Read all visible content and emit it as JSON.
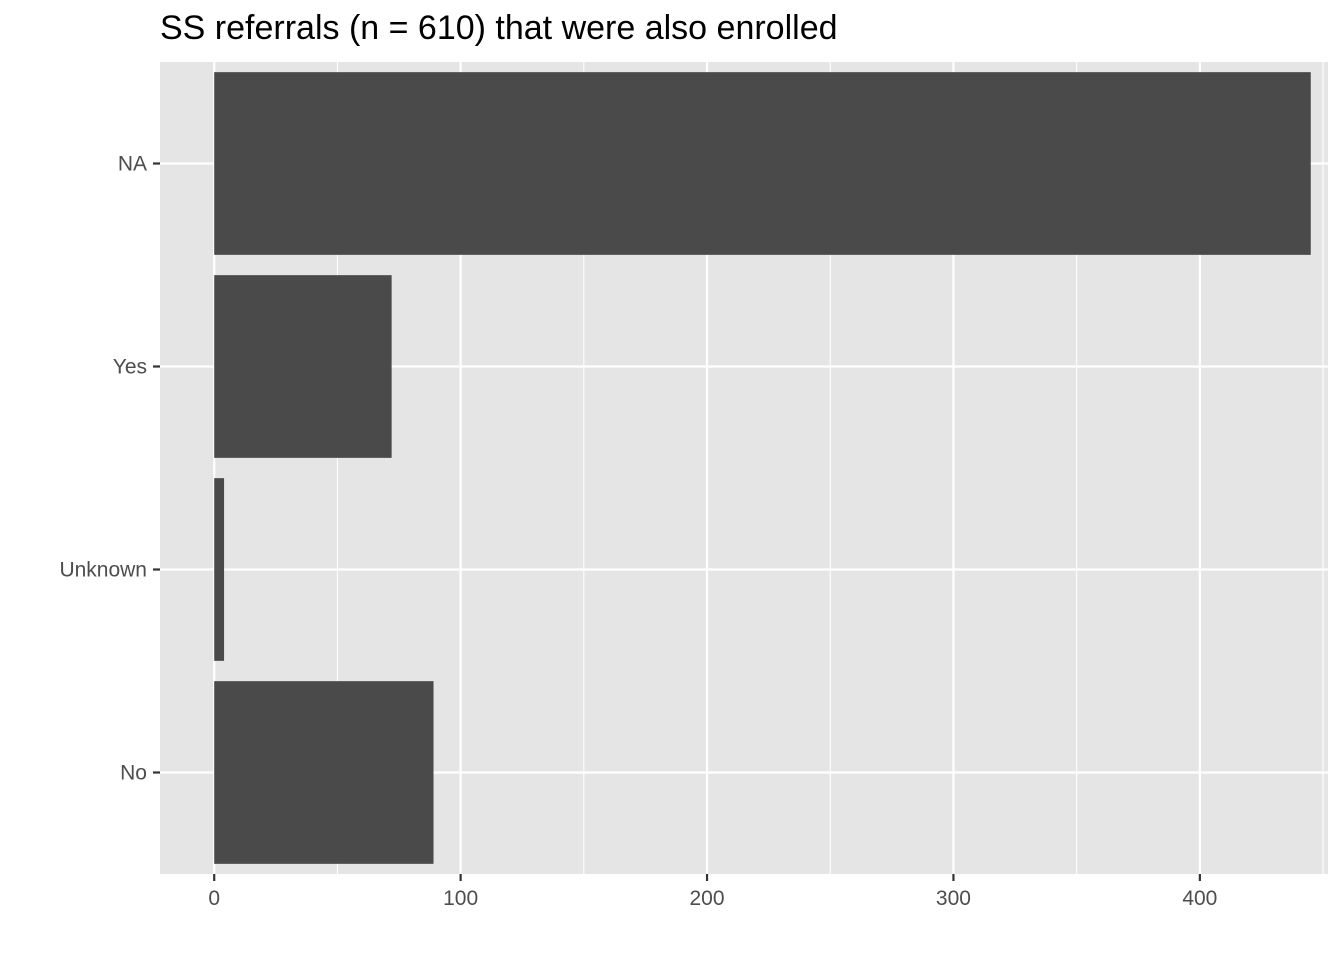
{
  "chart_data": {
    "type": "bar",
    "orientation": "horizontal",
    "title": "SS referrals (n = 610) that were also enrolled",
    "xlabel": "",
    "ylabel": "",
    "categories": [
      "NA",
      "Yes",
      "Unknown",
      "No"
    ],
    "values": [
      445,
      72,
      4,
      89
    ],
    "xlim": [
      -22,
      452
    ],
    "xticks": [
      0,
      100,
      200,
      300,
      400
    ],
    "grid": true,
    "legend": "none",
    "colors": {
      "bar": "#4a4a4a",
      "panel": "#e5e5e5",
      "grid": "#ffffff",
      "text": "#4d4d4d",
      "tick": "#333333"
    }
  }
}
